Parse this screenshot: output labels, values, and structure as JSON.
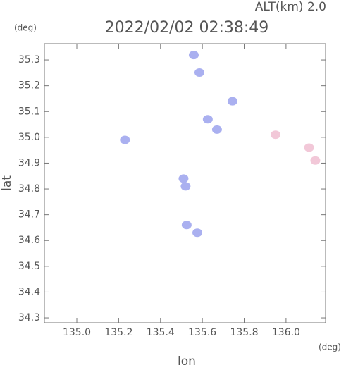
{
  "chart_data": {
    "type": "scatter",
    "title": "2022/02/02 02:38:49",
    "subtitle": "ALT(km) 2.0",
    "x_unit": "(deg)",
    "y_unit": "(deg)",
    "x_label": "lon",
    "y_label": "lat",
    "xlim": [
      134.845,
      136.189
    ],
    "ylim": [
      34.281,
      35.363
    ],
    "xticks": [
      {
        "value": 135,
        "label": "135.0"
      },
      135.2,
      135.4,
      135.6,
      135.8,
      {
        "value": 136,
        "label": "136.0"
      }
    ],
    "yticks": [
      34.3,
      34.4,
      34.5,
      34.6,
      34.7,
      34.8,
      34.9,
      {
        "value": 35,
        "label": "35.0"
      },
      35.1,
      35.2,
      35.3
    ],
    "series": [
      {
        "color": "#aab0f0",
        "x": [
          135.559,
          135.586,
          135.744,
          135.626,
          135.67,
          135.23,
          135.51,
          135.52,
          135.576,
          135.525
        ],
        "values": [
          35.319,
          35.251,
          35.14,
          35.07,
          35.03,
          34.99,
          34.84,
          34.81,
          34.63,
          34.66
        ]
      },
      {
        "color": "#f2c8d8",
        "x": [
          135.95,
          136.11,
          136.14
        ],
        "values": [
          35.01,
          34.96,
          34.91
        ]
      }
    ]
  }
}
